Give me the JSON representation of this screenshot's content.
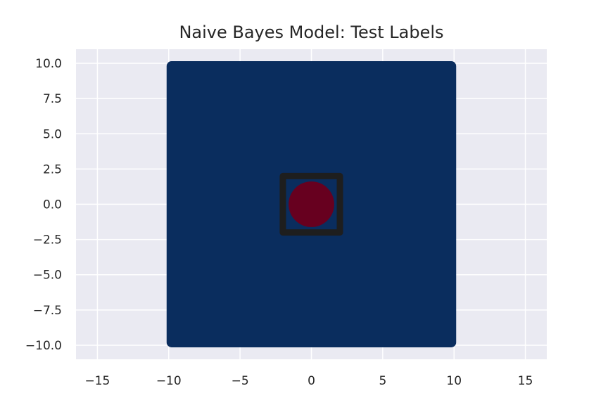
{
  "chart_data": {
    "type": "scatter",
    "title": "Naive Bayes Model: Test Labels",
    "xlabel": "",
    "ylabel": "",
    "xlim": [
      -16.5,
      16.5
    ],
    "ylim": [
      -11,
      11
    ],
    "grid": true,
    "x_ticks": [
      -15,
      -10,
      -5,
      0,
      5,
      10,
      15
    ],
    "y_ticks": [
      -10.0,
      -7.5,
      -5.0,
      -2.5,
      0.0,
      2.5,
      5.0,
      7.5,
      10.0
    ],
    "x_tick_labels": [
      "−15",
      "−10",
      "−5",
      "0",
      "5",
      "10",
      "15"
    ],
    "y_tick_labels": [
      "−10.0",
      "−7.5",
      "−5.0",
      "−2.5",
      "0.0",
      "2.5",
      "5.0",
      "7.5",
      "10.0"
    ],
    "regions": [
      {
        "label": "0",
        "shape": "square",
        "x_range": [
          -10,
          10
        ],
        "y_range": [
          -10,
          10
        ],
        "color": "#0a2d5e"
      },
      {
        "label": "1",
        "shape": "circle",
        "center": [
          0,
          0
        ],
        "radius": 1.6,
        "color": "#67001f"
      }
    ],
    "boundary_box": {
      "x_range": [
        -2,
        2
      ],
      "y_range": [
        -2,
        2
      ],
      "color": "#1e1e1e"
    },
    "colors": {
      "plot_background": "#eaeaf2",
      "grid": "#ffffff",
      "class_0": "#0a2d5e",
      "class_1": "#67001f",
      "box": "#1e1e1e"
    }
  }
}
